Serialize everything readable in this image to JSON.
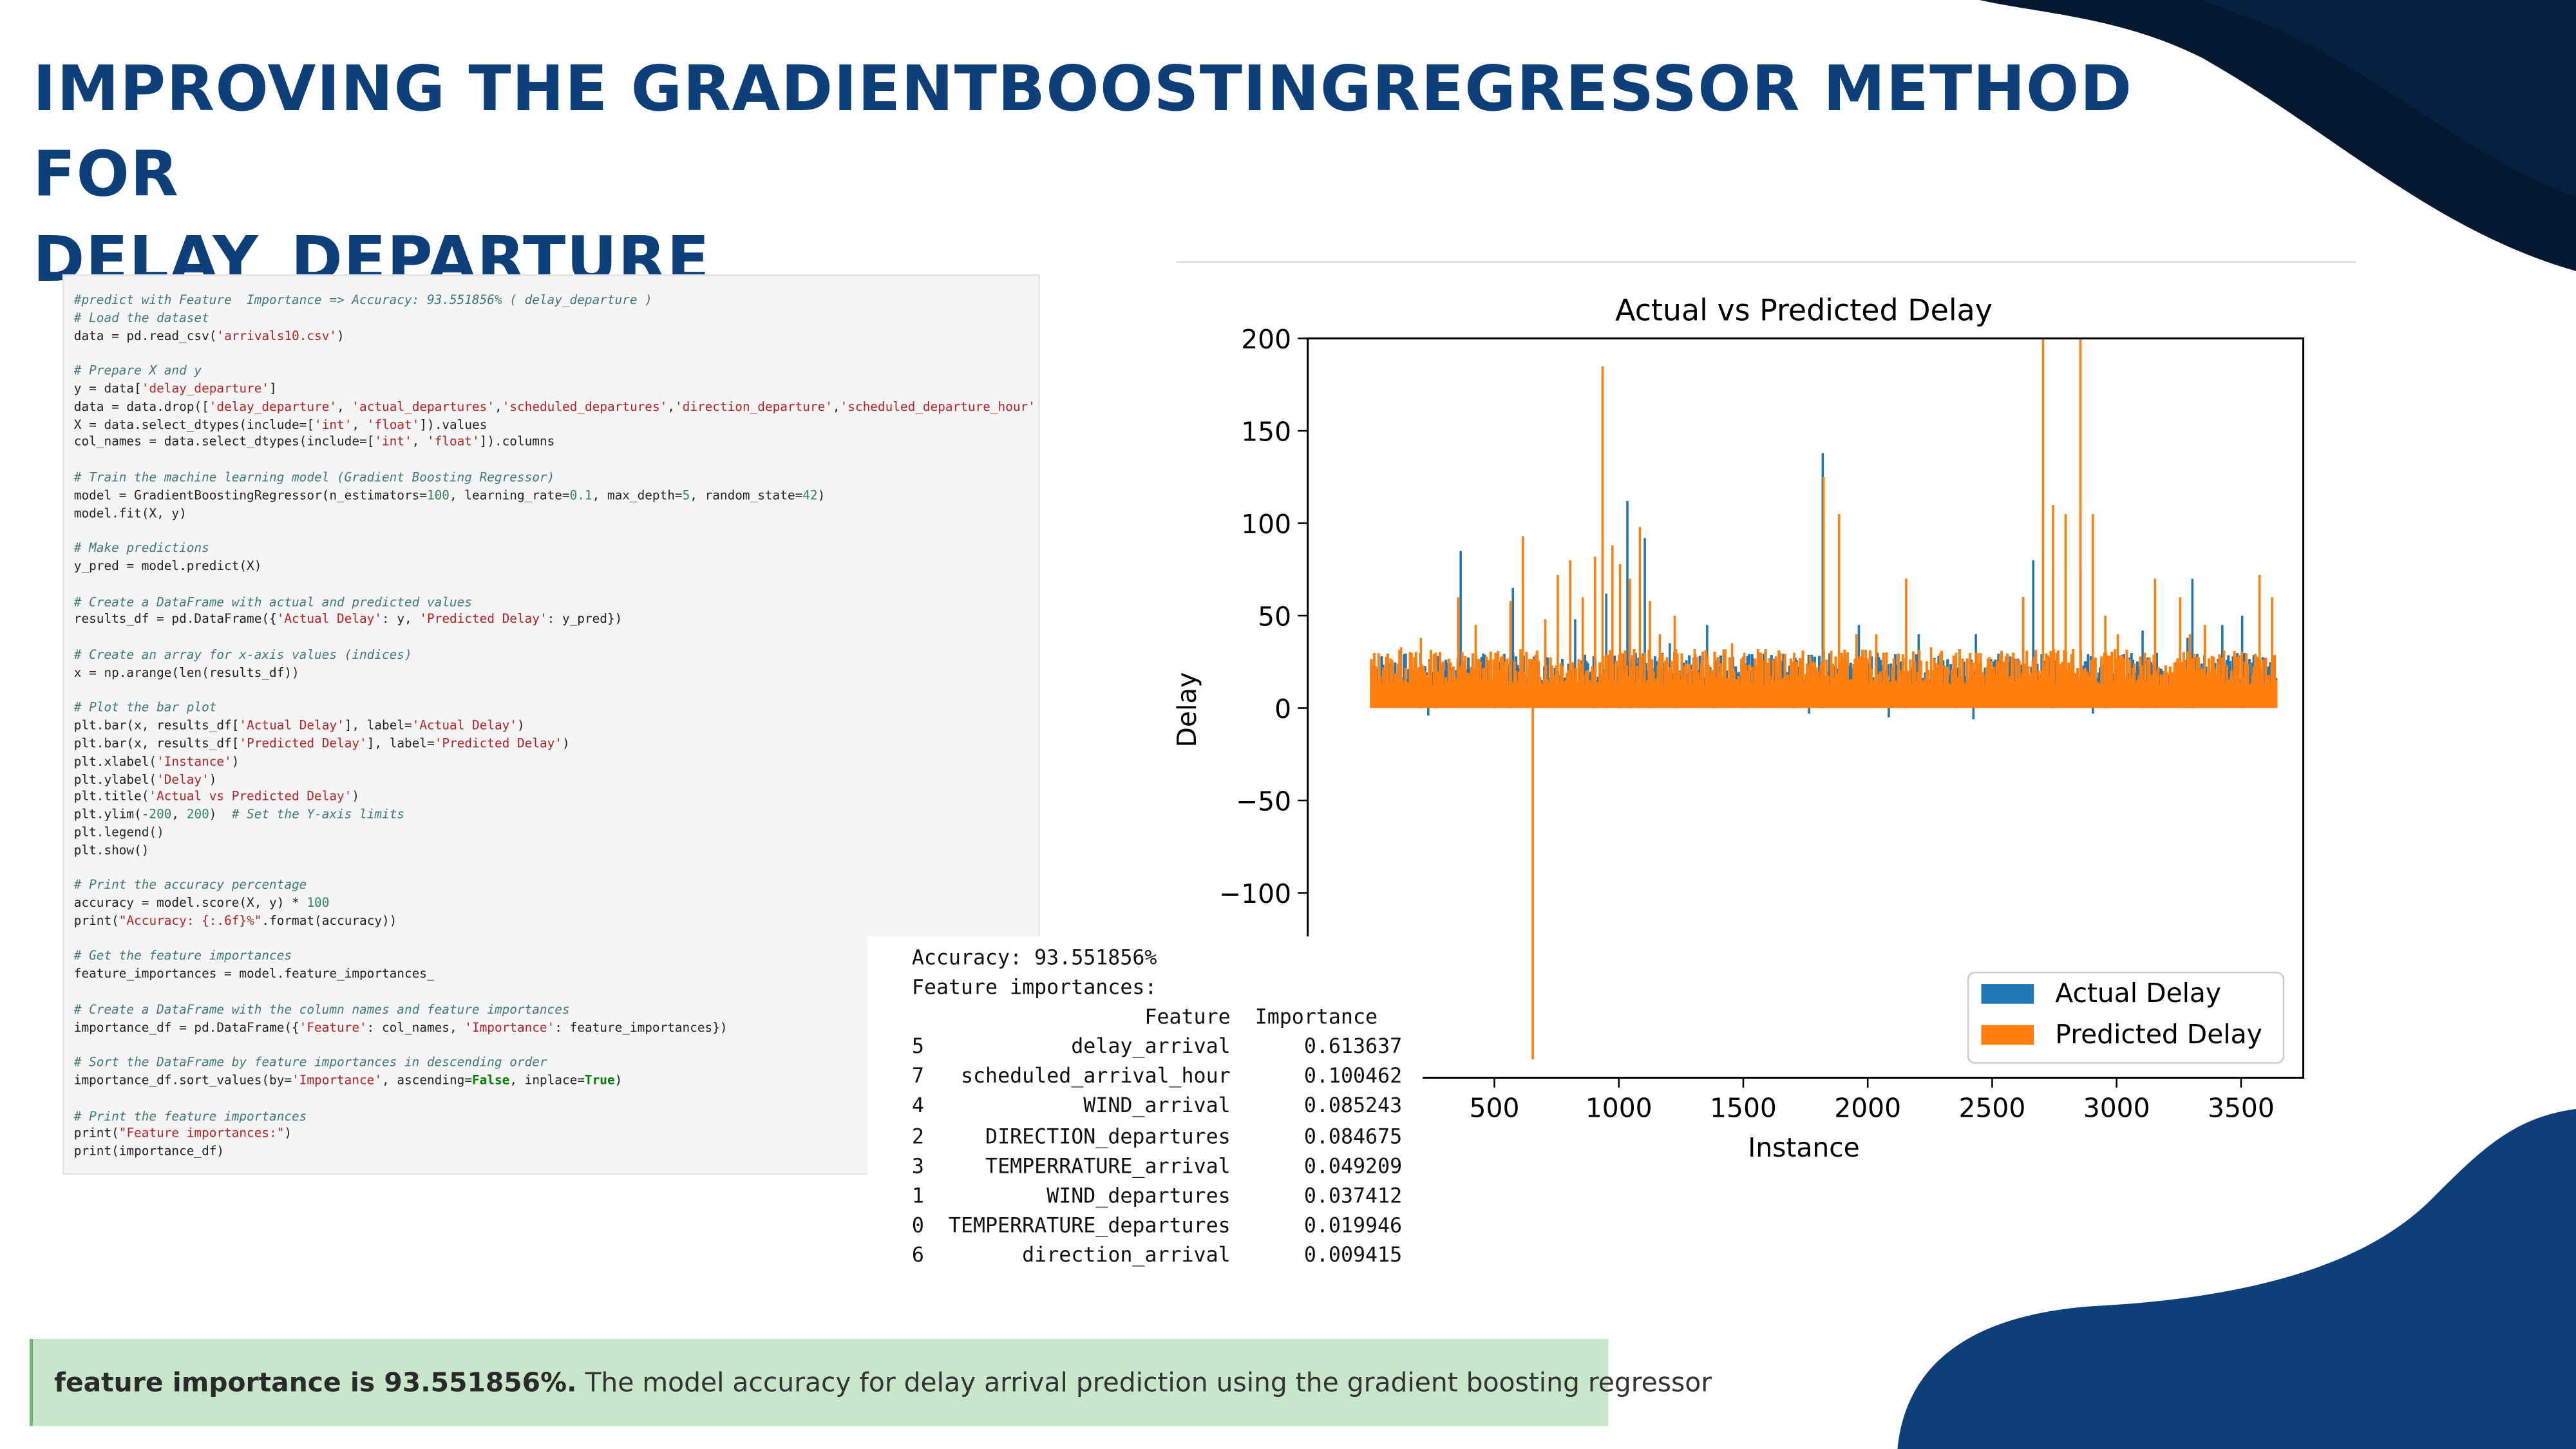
{
  "slide": {
    "title_line1": "IMPROVING THE GRADIENTBOOSTINGREGRESSOR METHOD FOR",
    "title_line2": "DELAY_DEPARTURE",
    "colors": {
      "title": "#0d3f7a",
      "deco_dark": "#04182f",
      "deco_blue": "#0d3f7a",
      "banner_bg": "#c8e6c9"
    }
  },
  "code": {
    "lines": [
      [
        {
          "t": "c",
          "s": "#predict with Feature  Importance => Accuracy: 93.551856% ( delay_departure )"
        }
      ],
      [
        {
          "t": "c",
          "s": "# Load the dataset"
        }
      ],
      [
        {
          "t": "p",
          "s": "data = pd.read_csv("
        },
        {
          "t": "s",
          "s": "'arrivals10.csv'"
        },
        {
          "t": "p",
          "s": ")"
        }
      ],
      [],
      [
        {
          "t": "c",
          "s": "# Prepare X and y"
        }
      ],
      [
        {
          "t": "p",
          "s": "y = data["
        },
        {
          "t": "s",
          "s": "'delay_departure'"
        },
        {
          "t": "p",
          "s": "]"
        }
      ],
      [
        {
          "t": "p",
          "s": "data = data.drop(["
        },
        {
          "t": "s",
          "s": "'delay_departure'"
        },
        {
          "t": "p",
          "s": ", "
        },
        {
          "t": "s",
          "s": "'actual_departures'"
        },
        {
          "t": "p",
          "s": ","
        },
        {
          "t": "s",
          "s": "'scheduled_departures'"
        },
        {
          "t": "p",
          "s": ","
        },
        {
          "t": "s",
          "s": "'direction_departure'"
        },
        {
          "t": "p",
          "s": ","
        },
        {
          "t": "s",
          "s": "'scheduled_departure_hour'"
        }
      ],
      [
        {
          "t": "p",
          "s": "X = data.select_dtypes(include=["
        },
        {
          "t": "s",
          "s": "'int'"
        },
        {
          "t": "p",
          "s": ", "
        },
        {
          "t": "s",
          "s": "'float'"
        },
        {
          "t": "p",
          "s": "]).values"
        }
      ],
      [
        {
          "t": "p",
          "s": "col_names = data.select_dtypes(include=["
        },
        {
          "t": "s",
          "s": "'int'"
        },
        {
          "t": "p",
          "s": ", "
        },
        {
          "t": "s",
          "s": "'float'"
        },
        {
          "t": "p",
          "s": "]).columns"
        }
      ],
      [],
      [
        {
          "t": "c",
          "s": "# Train the machine learning model (Gradient Boosting Regressor)"
        }
      ],
      [
        {
          "t": "p",
          "s": "model = GradientBoostingRegressor(n_estimators="
        },
        {
          "t": "n",
          "s": "100"
        },
        {
          "t": "p",
          "s": ", learning_rate="
        },
        {
          "t": "n",
          "s": "0.1"
        },
        {
          "t": "p",
          "s": ", max_depth="
        },
        {
          "t": "n",
          "s": "5"
        },
        {
          "t": "p",
          "s": ", random_state="
        },
        {
          "t": "n",
          "s": "42"
        },
        {
          "t": "p",
          "s": ")"
        }
      ],
      [
        {
          "t": "p",
          "s": "model.fit(X, y)"
        }
      ],
      [],
      [
        {
          "t": "c",
          "s": "# Make predictions"
        }
      ],
      [
        {
          "t": "p",
          "s": "y_pred = model.predict(X)"
        }
      ],
      [],
      [
        {
          "t": "c",
          "s": "# Create a DataFrame with actual and predicted values"
        }
      ],
      [
        {
          "t": "p",
          "s": "results_df = pd.DataFrame({"
        },
        {
          "t": "s",
          "s": "'Actual Delay'"
        },
        {
          "t": "p",
          "s": ": y, "
        },
        {
          "t": "s",
          "s": "'Predicted Delay'"
        },
        {
          "t": "p",
          "s": ": y_pred})"
        }
      ],
      [],
      [
        {
          "t": "c",
          "s": "# Create an array for x-axis values (indices)"
        }
      ],
      [
        {
          "t": "p",
          "s": "x = np.arange(len(results_df))"
        }
      ],
      [],
      [
        {
          "t": "c",
          "s": "# Plot the bar plot"
        }
      ],
      [
        {
          "t": "p",
          "s": "plt.bar(x, results_df["
        },
        {
          "t": "s",
          "s": "'Actual Delay'"
        },
        {
          "t": "p",
          "s": "], label="
        },
        {
          "t": "s",
          "s": "'Actual Delay'"
        },
        {
          "t": "p",
          "s": ")"
        }
      ],
      [
        {
          "t": "p",
          "s": "plt.bar(x, results_df["
        },
        {
          "t": "s",
          "s": "'Predicted Delay'"
        },
        {
          "t": "p",
          "s": "], label="
        },
        {
          "t": "s",
          "s": "'Predicted Delay'"
        },
        {
          "t": "p",
          "s": ")"
        }
      ],
      [
        {
          "t": "p",
          "s": "plt.xlabel("
        },
        {
          "t": "s",
          "s": "'Instance'"
        },
        {
          "t": "p",
          "s": ")"
        }
      ],
      [
        {
          "t": "p",
          "s": "plt.ylabel("
        },
        {
          "t": "s",
          "s": "'Delay'"
        },
        {
          "t": "p",
          "s": ")"
        }
      ],
      [
        {
          "t": "p",
          "s": "plt.title("
        },
        {
          "t": "s",
          "s": "'Actual vs Predicted Delay'"
        },
        {
          "t": "p",
          "s": ")"
        }
      ],
      [
        {
          "t": "p",
          "s": "plt.ylim(-"
        },
        {
          "t": "n",
          "s": "200"
        },
        {
          "t": "p",
          "s": ", "
        },
        {
          "t": "n",
          "s": "200"
        },
        {
          "t": "p",
          "s": ")  "
        },
        {
          "t": "c",
          "s": "# Set the Y-axis limits"
        }
      ],
      [
        {
          "t": "p",
          "s": "plt.legend()"
        }
      ],
      [
        {
          "t": "p",
          "s": "plt.show()"
        }
      ],
      [],
      [
        {
          "t": "c",
          "s": "# Print the accuracy percentage"
        }
      ],
      [
        {
          "t": "p",
          "s": "accuracy = model.score(X, y) * "
        },
        {
          "t": "n",
          "s": "100"
        }
      ],
      [
        {
          "t": "p",
          "s": "print("
        },
        {
          "t": "s",
          "s": "\"Accuracy: {:.6f}%\""
        },
        {
          "t": "p",
          "s": ".format(accuracy))"
        }
      ],
      [],
      [
        {
          "t": "c",
          "s": "# Get the feature importances"
        }
      ],
      [
        {
          "t": "p",
          "s": "feature_importances = model.feature_importances_"
        }
      ],
      [],
      [
        {
          "t": "c",
          "s": "# Create a DataFrame with the column names and feature importances"
        }
      ],
      [
        {
          "t": "p",
          "s": "importance_df = pd.DataFrame({"
        },
        {
          "t": "s",
          "s": "'Feature'"
        },
        {
          "t": "p",
          "s": ": col_names, "
        },
        {
          "t": "s",
          "s": "'Importance'"
        },
        {
          "t": "p",
          "s": ": feature_importances})"
        }
      ],
      [],
      [
        {
          "t": "c",
          "s": "# Sort the DataFrame by feature importances in descending order"
        }
      ],
      [
        {
          "t": "p",
          "s": "importance_df.sort_values(by="
        },
        {
          "t": "s",
          "s": "'Importance'"
        },
        {
          "t": "p",
          "s": ", ascending="
        },
        {
          "t": "b",
          "s": "False"
        },
        {
          "t": "p",
          "s": ", inplace="
        },
        {
          "t": "b",
          "s": "True"
        },
        {
          "t": "p",
          "s": ")"
        }
      ],
      [],
      [
        {
          "t": "c",
          "s": "# Print the feature importances"
        }
      ],
      [
        {
          "t": "p",
          "s": "print("
        },
        {
          "t": "s",
          "s": "\"Feature importances:\""
        },
        {
          "t": "p",
          "s": ")"
        }
      ],
      [
        {
          "t": "p",
          "s": "print(importance_df)"
        }
      ]
    ]
  },
  "output": {
    "accuracy_line": "Accuracy: 93.551856%",
    "heading": "Feature importances:",
    "columns": [
      "",
      "Feature",
      "Importance"
    ],
    "rows": [
      [
        "5",
        "delay_arrival",
        "0.613637"
      ],
      [
        "7",
        "scheduled_arrival_hour",
        "0.100462"
      ],
      [
        "4",
        "WIND_arrival",
        "0.085243"
      ],
      [
        "2",
        "DIRECTION_departures",
        "0.084675"
      ],
      [
        "3",
        "TEMPERRATURE_arrival",
        "0.049209"
      ],
      [
        "1",
        "WIND_departures",
        "0.037412"
      ],
      [
        "0",
        "TEMPERRATURE_departures",
        "0.019946"
      ],
      [
        "6",
        "direction_arrival",
        "0.009415"
      ]
    ]
  },
  "banner": {
    "bold_text": "feature importance is 93.551856%.",
    "text": " The model accuracy for delay arrival prediction using the gradient boosting regressor"
  },
  "chart_data": {
    "type": "bar",
    "title": "Actual vs Predicted Delay",
    "xlabel": "Instance",
    "ylabel": "Delay",
    "xlim": [
      -250,
      3750
    ],
    "ylim": [
      -200,
      200
    ],
    "x_ticks": [
      500,
      1000,
      1500,
      2000,
      2500,
      3000,
      3500
    ],
    "y_ticks": [
      200,
      150,
      100,
      50,
      0,
      -50,
      -100
    ],
    "y_tick_labels": [
      "200",
      "150",
      "100",
      "50",
      "0",
      "−50",
      "−100"
    ],
    "x_range": [
      0,
      3640
    ],
    "legend_position": "lower-right",
    "series": [
      {
        "name": "Actual Delay",
        "color": "#1f77b4",
        "spikes": [
          [
            360,
            85
          ],
          [
            570,
            65
          ],
          [
            700,
            40
          ],
          [
            820,
            48
          ],
          [
            945,
            62
          ],
          [
            1030,
            112
          ],
          [
            1100,
            92
          ],
          [
            1200,
            35
          ],
          [
            1350,
            45
          ],
          [
            1815,
            138
          ],
          [
            1960,
            45
          ],
          [
            2200,
            40
          ],
          [
            2430,
            40
          ],
          [
            2620,
            60
          ],
          [
            2660,
            80
          ],
          [
            2850,
            75
          ],
          [
            3100,
            42
          ],
          [
            3280,
            38
          ],
          [
            3300,
            70
          ],
          [
            3420,
            45
          ],
          [
            3500,
            50
          ],
          [
            230,
            -4
          ],
          [
            1760,
            -3
          ],
          [
            2080,
            -5
          ],
          [
            2420,
            -6
          ],
          [
            2900,
            -3
          ]
        ]
      },
      {
        "name": "Predicted Delay",
        "color": "#ff7f0e",
        "spikes": [
          [
            50,
            22
          ],
          [
            120,
            33
          ],
          [
            200,
            38
          ],
          [
            260,
            30
          ],
          [
            350,
            60
          ],
          [
            420,
            45
          ],
          [
            500,
            30
          ],
          [
            560,
            58
          ],
          [
            610,
            93
          ],
          [
            650,
            -190
          ],
          [
            700,
            48
          ],
          [
            750,
            72
          ],
          [
            800,
            80
          ],
          [
            850,
            60
          ],
          [
            900,
            82
          ],
          [
            930,
            185
          ],
          [
            970,
            88
          ],
          [
            1000,
            78
          ],
          [
            1040,
            70
          ],
          [
            1080,
            98
          ],
          [
            1120,
            58
          ],
          [
            1160,
            40
          ],
          [
            1220,
            50
          ],
          [
            1300,
            32
          ],
          [
            1380,
            30
          ],
          [
            1450,
            35
          ],
          [
            1500,
            30
          ],
          [
            1600,
            27
          ],
          [
            1700,
            30
          ],
          [
            1818,
            125
          ],
          [
            1880,
            105
          ],
          [
            1950,
            40
          ],
          [
            2030,
            40
          ],
          [
            2150,
            70
          ],
          [
            2250,
            33
          ],
          [
            2350,
            30
          ],
          [
            2450,
            25
          ],
          [
            2550,
            28
          ],
          [
            2620,
            60
          ],
          [
            2700,
            200
          ],
          [
            2740,
            110
          ],
          [
            2790,
            105
          ],
          [
            2850,
            200
          ],
          [
            2900,
            105
          ],
          [
            2950,
            50
          ],
          [
            3000,
            40
          ],
          [
            3150,
            70
          ],
          [
            3250,
            60
          ],
          [
            3290,
            40
          ],
          [
            3350,
            45
          ],
          [
            3480,
            25
          ],
          [
            3570,
            72
          ],
          [
            3620,
            60
          ]
        ]
      }
    ]
  }
}
